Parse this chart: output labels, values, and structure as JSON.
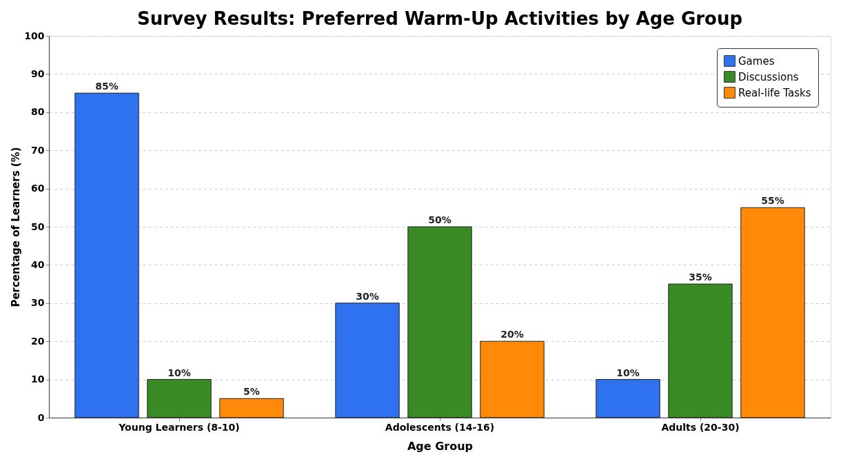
{
  "chart_data": {
    "type": "bar",
    "title": "Survey Results: Preferred Warm-Up Activities by Age Group",
    "xlabel": "Age Group",
    "ylabel": "Percentage of Learners (%)",
    "categories": [
      "Young Learners (8-10)",
      "Adolescents (14-16)",
      "Adults (20-30)"
    ],
    "series": [
      {
        "name": "Games",
        "color": "#2f72f0",
        "values": [
          85,
          30,
          10
        ],
        "value_labels": [
          "85%",
          "30%",
          "10%"
        ]
      },
      {
        "name": "Discussions",
        "color": "#3a8a25",
        "values": [
          10,
          50,
          35
        ],
        "value_labels": [
          "10%",
          "50%",
          "35%"
        ]
      },
      {
        "name": "Real-life Tasks",
        "color": "#ff8a0a",
        "values": [
          5,
          20,
          55
        ],
        "value_labels": [
          "5%",
          "20%",
          "55%"
        ]
      }
    ],
    "ylim": [
      0,
      100
    ],
    "yticks": [
      0,
      10,
      20,
      30,
      40,
      50,
      60,
      70,
      80,
      90,
      100
    ],
    "grid": "y",
    "legend": "top right"
  }
}
